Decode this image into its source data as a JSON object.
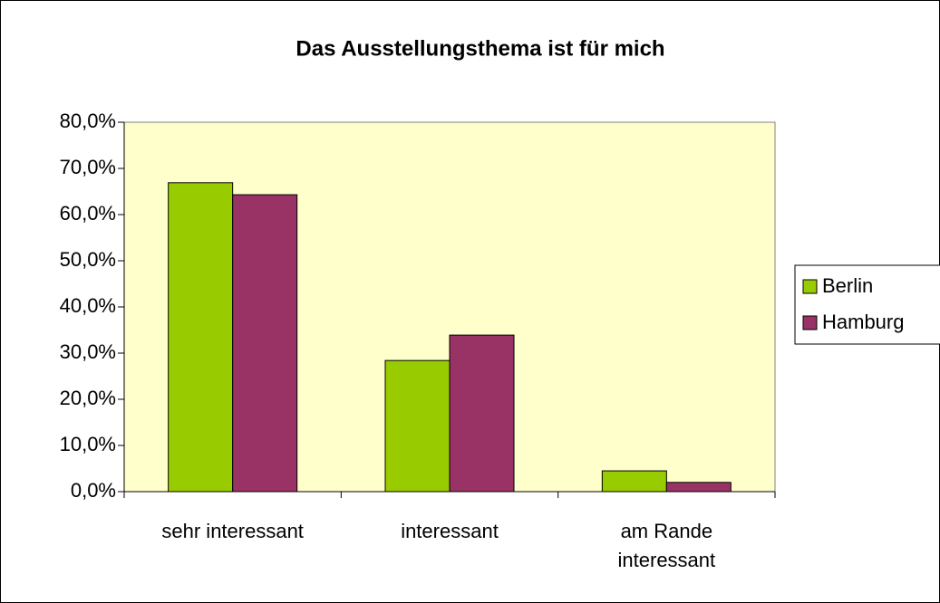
{
  "chart_data": {
    "type": "bar",
    "title": "Das Ausstellungsthema ist für mich",
    "categories": [
      "sehr interessant",
      "interessant",
      "am Rande interessant"
    ],
    "series": [
      {
        "name": "Berlin",
        "color": "#99cc00",
        "values": [
          66.9,
          28.4,
          4.5
        ]
      },
      {
        "name": "Hamburg",
        "color": "#993366",
        "values": [
          64.3,
          33.9,
          2.0
        ]
      }
    ],
    "ylim": [
      0,
      80
    ],
    "yticks": [
      {
        "value": 0,
        "label": "0,0%"
      },
      {
        "value": 10,
        "label": "10,0%"
      },
      {
        "value": 20,
        "label": "20,0%"
      },
      {
        "value": 30,
        "label": "30,0%"
      },
      {
        "value": 40,
        "label": "40,0%"
      },
      {
        "value": 50,
        "label": "50,0%"
      },
      {
        "value": 60,
        "label": "60,0%"
      },
      {
        "value": 70,
        "label": "70,0%"
      },
      {
        "value": 80,
        "label": "80,0%"
      }
    ],
    "plot_background": "#ffffcc",
    "legend": "right"
  }
}
